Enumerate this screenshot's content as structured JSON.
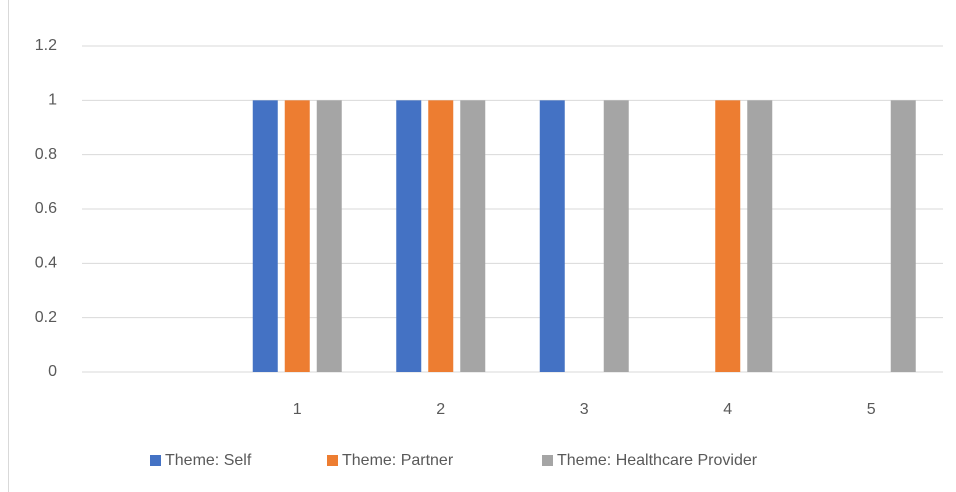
{
  "chart_data": {
    "type": "bar",
    "categories": [
      null,
      "1",
      "2",
      "3",
      "4",
      "5"
    ],
    "series": [
      {
        "name": "Theme: Self",
        "color": "#4472c4",
        "values": [
          0,
          1,
          1,
          1,
          0,
          0
        ]
      },
      {
        "name": "Theme: Partner",
        "color": "#ed7d31",
        "values": [
          0,
          1,
          1,
          0,
          1,
          0
        ]
      },
      {
        "name": "Theme: Healthcare Provider",
        "color": "#a5a5a5",
        "values": [
          0,
          1,
          1,
          1,
          1,
          1
        ]
      }
    ],
    "ylim": [
      0,
      1.2
    ],
    "yticks": [
      0,
      0.2,
      0.4,
      0.6,
      0.8,
      1,
      1.2
    ],
    "grid": true,
    "legend": "bottom"
  }
}
